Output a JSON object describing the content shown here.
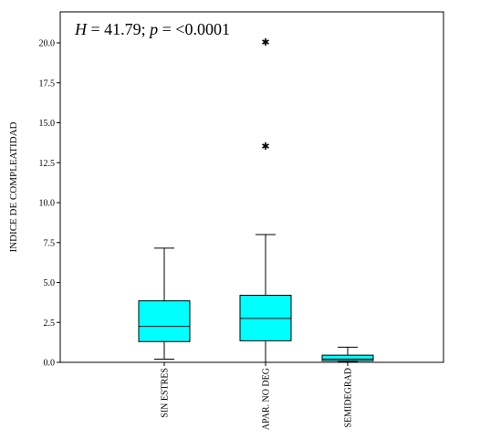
{
  "chart_data": {
    "type": "boxplot",
    "annotation": {
      "H_label": "H",
      "H_eq": " = 41.79; ",
      "p_label": "p",
      "p_eq": " = <0.0001"
    },
    "ylabel": "INDICE DE COMPLEATIDAD",
    "xlabel": "",
    "ylim": [
      0,
      22.2
    ],
    "yticks": [
      "0.0",
      "2.5",
      "5.0",
      "7.5",
      "10.0",
      "12.5",
      "15.0",
      "17.5",
      "20.0"
    ],
    "ytick_values": [
      0,
      2.5,
      5,
      7.5,
      10,
      12.5,
      15,
      17.5,
      20
    ],
    "categories": [
      "SIN ESTRES",
      "APAR. NO DEG",
      "SEMIDEGRAD"
    ],
    "boxes": [
      {
        "whisker_low": 0.2,
        "q1": 1.3,
        "median": 2.25,
        "q3": 3.85,
        "whisker_high": 7.15,
        "outliers": []
      },
      {
        "whisker_low": 0.0,
        "q1": 1.35,
        "median": 2.75,
        "q3": 4.2,
        "whisker_high": 8.0,
        "outliers": [
          13.55,
          20.05
        ]
      },
      {
        "whisker_low": 0.05,
        "q1": 0.1,
        "median": 0.2,
        "q3": 0.45,
        "whisker_high": 0.95,
        "outliers": []
      }
    ],
    "box_color": "#00ffff",
    "outlier_marker": "✱",
    "grid": false,
    "legend": "none"
  }
}
